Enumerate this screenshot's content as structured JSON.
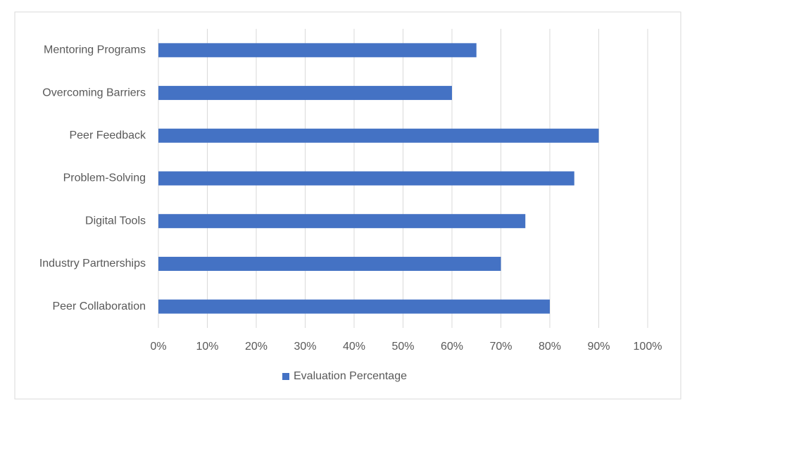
{
  "chart_data": {
    "type": "bar",
    "orientation": "horizontal",
    "categories": [
      "Mentoring Programs",
      "Overcoming Barriers",
      "Peer Feedback",
      "Problem-Solving",
      "Digital Tools",
      "Industry Partnerships",
      "Peer Collaboration"
    ],
    "series": [
      {
        "name": "Evaluation Percentage",
        "color": "#4472c4",
        "values": [
          65,
          60,
          90,
          85,
          75,
          70,
          80
        ]
      }
    ],
    "xlim": [
      0,
      100
    ],
    "xticks": [
      {
        "value": 0,
        "label": "0%"
      },
      {
        "value": 10,
        "label": "10%"
      },
      {
        "value": 20,
        "label": "20%"
      },
      {
        "value": 30,
        "label": "30%"
      },
      {
        "value": 40,
        "label": "40%"
      },
      {
        "value": 50,
        "label": "50%"
      },
      {
        "value": 60,
        "label": "60%"
      },
      {
        "value": 70,
        "label": "70%"
      },
      {
        "value": 80,
        "label": "80%"
      },
      {
        "value": 90,
        "label": "90%"
      },
      {
        "value": 100,
        "label": "100%"
      }
    ],
    "grid": true,
    "legend": "bottom"
  }
}
